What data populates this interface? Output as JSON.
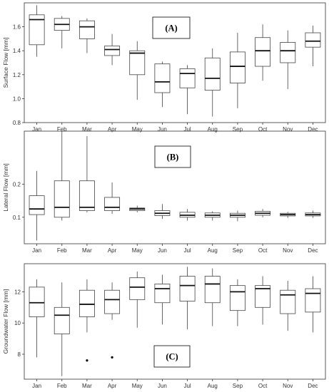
{
  "chart_data": [
    {
      "type": "box",
      "tag": "(A)",
      "ylabel": "Surface Flow [mm]",
      "ylim": [
        0.8,
        1.8
      ],
      "yticks": [
        "0.8",
        "1.0",
        "1.2",
        "1.4",
        "1.6"
      ],
      "yticks_values": [
        0.8,
        1.0,
        1.2,
        1.4,
        1.6
      ],
      "grid": false,
      "categories": [
        "Jan",
        "Feb",
        "Mar",
        "Apr",
        "May",
        "Jun",
        "Jul",
        "Aug",
        "Sep",
        "Oct",
        "Nov",
        "Dec"
      ],
      "boxes": [
        {
          "min": 1.35,
          "q1": 1.45,
          "median": 1.66,
          "q3": 1.7,
          "max": 1.78,
          "outliers": []
        },
        {
          "min": 1.42,
          "q1": 1.57,
          "median": 1.62,
          "q3": 1.67,
          "max": 1.69,
          "outliers": []
        },
        {
          "min": 1.38,
          "q1": 1.5,
          "median": 1.6,
          "q3": 1.65,
          "max": 1.67,
          "outliers": []
        },
        {
          "min": 1.28,
          "q1": 1.36,
          "median": 1.41,
          "q3": 1.44,
          "max": 1.54,
          "outliers": []
        },
        {
          "min": 0.99,
          "q1": 1.2,
          "median": 1.38,
          "q3": 1.4,
          "max": 1.48,
          "outliers": []
        },
        {
          "min": 0.93,
          "q1": 1.05,
          "median": 1.14,
          "q3": 1.29,
          "max": 1.31,
          "outliers": []
        },
        {
          "min": 0.87,
          "q1": 1.09,
          "median": 1.21,
          "q3": 1.25,
          "max": 1.28,
          "outliers": []
        },
        {
          "min": 0.85,
          "q1": 1.07,
          "median": 1.17,
          "q3": 1.34,
          "max": 1.42,
          "outliers": []
        },
        {
          "min": 0.92,
          "q1": 1.13,
          "median": 1.27,
          "q3": 1.39,
          "max": 1.55,
          "outliers": []
        },
        {
          "min": 1.15,
          "q1": 1.27,
          "median": 1.4,
          "q3": 1.51,
          "max": 1.62,
          "outliers": []
        },
        {
          "min": 1.08,
          "q1": 1.3,
          "median": 1.4,
          "q3": 1.47,
          "max": 1.57,
          "outliers": []
        },
        {
          "min": 1.27,
          "q1": 1.43,
          "median": 1.48,
          "q3": 1.55,
          "max": 1.61,
          "outliers": []
        }
      ]
    },
    {
      "type": "box",
      "tag": "(B)",
      "ylabel": "Lateral Flow [mm]",
      "ylim": [
        0.02,
        0.36
      ],
      "yticks": [
        "0.1",
        "0.2"
      ],
      "yticks_values": [
        0.1,
        0.2
      ],
      "grid": false,
      "categories": [
        "Jan",
        "Feb",
        "Mar",
        "Apr",
        "May",
        "Jun",
        "Jul",
        "Aug",
        "Sep",
        "Oct",
        "Nov",
        "Dec"
      ],
      "boxes": [
        {
          "min": 0.03,
          "q1": 0.108,
          "median": 0.125,
          "q3": 0.165,
          "max": 0.24,
          "outliers": []
        },
        {
          "min": 0.09,
          "q1": 0.1,
          "median": 0.13,
          "q3": 0.21,
          "max": 0.36,
          "outliers": []
        },
        {
          "min": 0.115,
          "q1": 0.12,
          "median": 0.13,
          "q3": 0.21,
          "max": 0.345,
          "outliers": []
        },
        {
          "min": 0.11,
          "q1": 0.12,
          "median": 0.13,
          "q3": 0.16,
          "max": 0.205,
          "outliers": []
        },
        {
          "min": 0.115,
          "q1": 0.12,
          "median": 0.125,
          "q3": 0.128,
          "max": 0.135,
          "outliers": []
        },
        {
          "min": 0.095,
          "q1": 0.105,
          "median": 0.112,
          "q3": 0.12,
          "max": 0.14,
          "outliers": []
        },
        {
          "min": 0.09,
          "q1": 0.1,
          "median": 0.106,
          "q3": 0.115,
          "max": 0.125,
          "outliers": []
        },
        {
          "min": 0.09,
          "q1": 0.1,
          "median": 0.106,
          "q3": 0.113,
          "max": 0.118,
          "outliers": []
        },
        {
          "min": 0.088,
          "q1": 0.1,
          "median": 0.106,
          "q3": 0.112,
          "max": 0.12,
          "outliers": []
        },
        {
          "min": 0.1,
          "q1": 0.106,
          "median": 0.112,
          "q3": 0.118,
          "max": 0.125,
          "outliers": []
        },
        {
          "min": 0.098,
          "q1": 0.104,
          "median": 0.108,
          "q3": 0.112,
          "max": 0.116,
          "outliers": []
        },
        {
          "min": 0.098,
          "q1": 0.104,
          "median": 0.108,
          "q3": 0.113,
          "max": 0.12,
          "outliers": []
        }
      ]
    },
    {
      "type": "box",
      "tag": "(C)",
      "ylabel": "Groundwater Flow [mm]",
      "ylim": [
        6.4,
        13.8
      ],
      "yticks": [
        "8",
        "10",
        "12"
      ],
      "yticks_values": [
        8,
        10,
        12
      ],
      "grid": false,
      "categories": [
        "Jan",
        "Feb",
        "Mar",
        "Apr",
        "May",
        "Jun",
        "Jul",
        "Aug",
        "Sep",
        "Oct",
        "Nov",
        "Dec"
      ],
      "boxes": [
        {
          "min": 7.8,
          "q1": 10.4,
          "median": 11.3,
          "q3": 12.3,
          "max": 12.8,
          "outliers": []
        },
        {
          "min": 6.6,
          "q1": 9.3,
          "median": 10.5,
          "q3": 11.0,
          "max": 12.6,
          "outliers": []
        },
        {
          "min": 9.4,
          "q1": 10.4,
          "median": 11.2,
          "q3": 12.1,
          "max": 12.8,
          "outliers": [
            7.6
          ]
        },
        {
          "min": 10.2,
          "q1": 10.6,
          "median": 11.5,
          "q3": 12.1,
          "max": 12.6,
          "outliers": [
            7.8
          ]
        },
        {
          "min": 9.7,
          "q1": 11.5,
          "median": 12.3,
          "q3": 12.9,
          "max": 13.3,
          "outliers": []
        },
        {
          "min": 9.9,
          "q1": 11.3,
          "median": 12.2,
          "q3": 12.5,
          "max": 13.1,
          "outliers": []
        },
        {
          "min": 9.6,
          "q1": 11.4,
          "median": 12.4,
          "q3": 13.0,
          "max": 13.6,
          "outliers": []
        },
        {
          "min": 9.8,
          "q1": 11.3,
          "median": 12.5,
          "q3": 13.0,
          "max": 13.5,
          "outliers": []
        },
        {
          "min": 9.8,
          "q1": 10.8,
          "median": 12.0,
          "q3": 12.4,
          "max": 12.8,
          "outliers": []
        },
        {
          "min": 9.9,
          "q1": 11.0,
          "median": 12.2,
          "q3": 12.4,
          "max": 13.0,
          "outliers": []
        },
        {
          "min": 9.5,
          "q1": 10.6,
          "median": 11.8,
          "q3": 12.1,
          "max": 12.7,
          "outliers": []
        },
        {
          "min": 9.4,
          "q1": 10.7,
          "median": 11.9,
          "q3": 12.2,
          "max": 13.0,
          "outliers": []
        }
      ]
    }
  ],
  "colors": {
    "box_fill": "#ffffff",
    "box_stroke": "#444444",
    "median": "#111111",
    "panel_border": "#333333",
    "tick_text": "#333333"
  }
}
